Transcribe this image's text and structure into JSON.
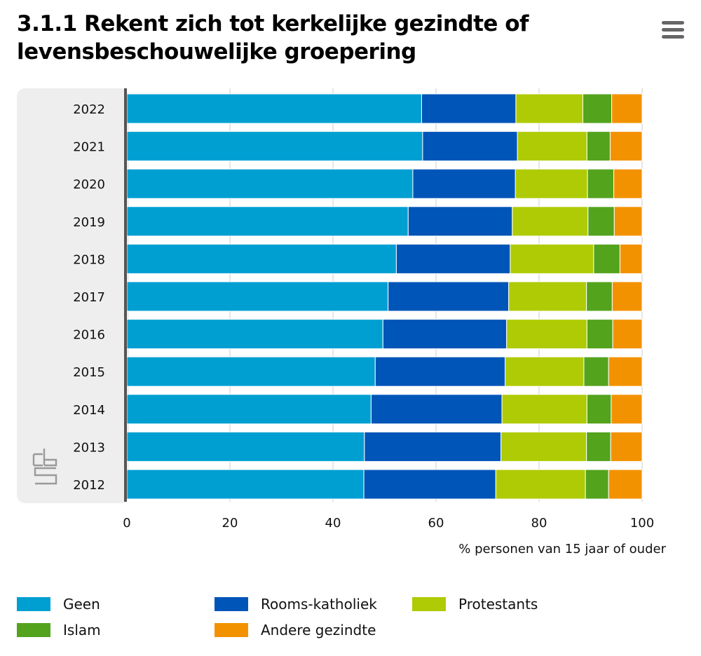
{
  "title": "3.1.1 Rekent zich tot kerkelijke gezindte of levensbeschouwelijke groepering",
  "menu": {
    "icon": "hamburger-menu-icon"
  },
  "logo": {
    "icon": "cbs-logo-icon"
  },
  "colors": {
    "geen": "#009fd2",
    "rooms_katholiek": "#0055b8",
    "protestants": "#afcb05",
    "islam": "#53a31d",
    "andere": "#f39200",
    "plot_background": "#eeeeee",
    "gridline": "#cccccc",
    "axis_line": "#555555"
  },
  "chart_data": {
    "type": "bar",
    "orientation": "horizontal",
    "stacked": true,
    "title": "3.1.1 Rekent zich tot kerkelijke gezindte of levensbeschouwelijke groepering",
    "xlabel": "% personen van 15 jaar of ouder",
    "ylabel": "",
    "xlim": [
      0,
      100
    ],
    "xticks": [
      "0",
      "20",
      "40",
      "60",
      "80",
      "100"
    ],
    "grid": true,
    "legend_position": "bottom",
    "categories": [
      "2022",
      "2021",
      "2020",
      "2019",
      "2018",
      "2017",
      "2016",
      "2015",
      "2014",
      "2013",
      "2012"
    ],
    "series": [
      {
        "name": "Geen",
        "color": "#009fd2",
        "values": [
          57.2,
          57.4,
          55.5,
          54.6,
          52.3,
          50.7,
          49.7,
          48.2,
          47.4,
          46.1,
          46.0
        ]
      },
      {
        "name": "Rooms-katholiek",
        "color": "#0055b8",
        "values": [
          18.3,
          18.4,
          19.9,
          20.2,
          22.1,
          23.4,
          24.0,
          25.2,
          25.4,
          26.5,
          25.6
        ]
      },
      {
        "name": "Protestants",
        "color": "#afcb05",
        "values": [
          13.0,
          13.5,
          14.0,
          14.7,
          16.2,
          15.1,
          15.6,
          15.3,
          16.5,
          16.6,
          17.4
        ]
      },
      {
        "name": "Islam",
        "color": "#53a31d",
        "values": [
          5.6,
          4.5,
          5.1,
          5.1,
          5.1,
          5.0,
          5.0,
          4.8,
          4.7,
          4.7,
          4.5
        ]
      },
      {
        "name": "Andere gezindte",
        "color": "#f39200",
        "values": [
          5.9,
          6.2,
          5.5,
          5.4,
          4.3,
          5.8,
          5.7,
          6.5,
          6.0,
          6.1,
          6.5
        ]
      }
    ]
  }
}
